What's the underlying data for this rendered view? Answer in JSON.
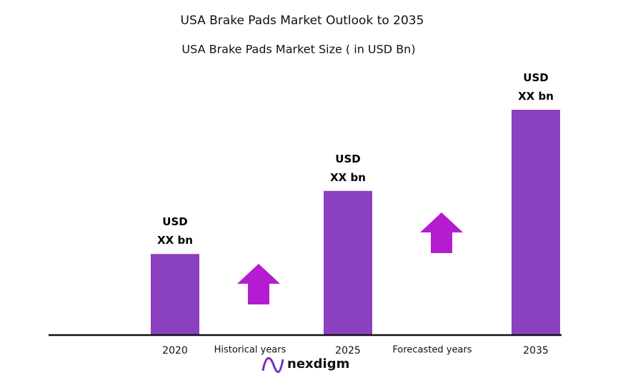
{
  "chart_data": {
    "type": "bar",
    "title": "USA Brake Pads Market Outlook to 2035",
    "subtitle": "USA Brake Pads Market Size  ( in USD Bn)",
    "categories": [
      "2020",
      "2025",
      "2035"
    ],
    "values": [
      36,
      64,
      100
    ],
    "value_labels": [
      "USD\nXX bn",
      "USD\nXX bn",
      "USD\nXX bn"
    ],
    "ylim": [
      0,
      100
    ],
    "color": "#8a40bf",
    "annotations": [
      "Historical years",
      "Forecasted years"
    ]
  },
  "logo": "nexdigm"
}
